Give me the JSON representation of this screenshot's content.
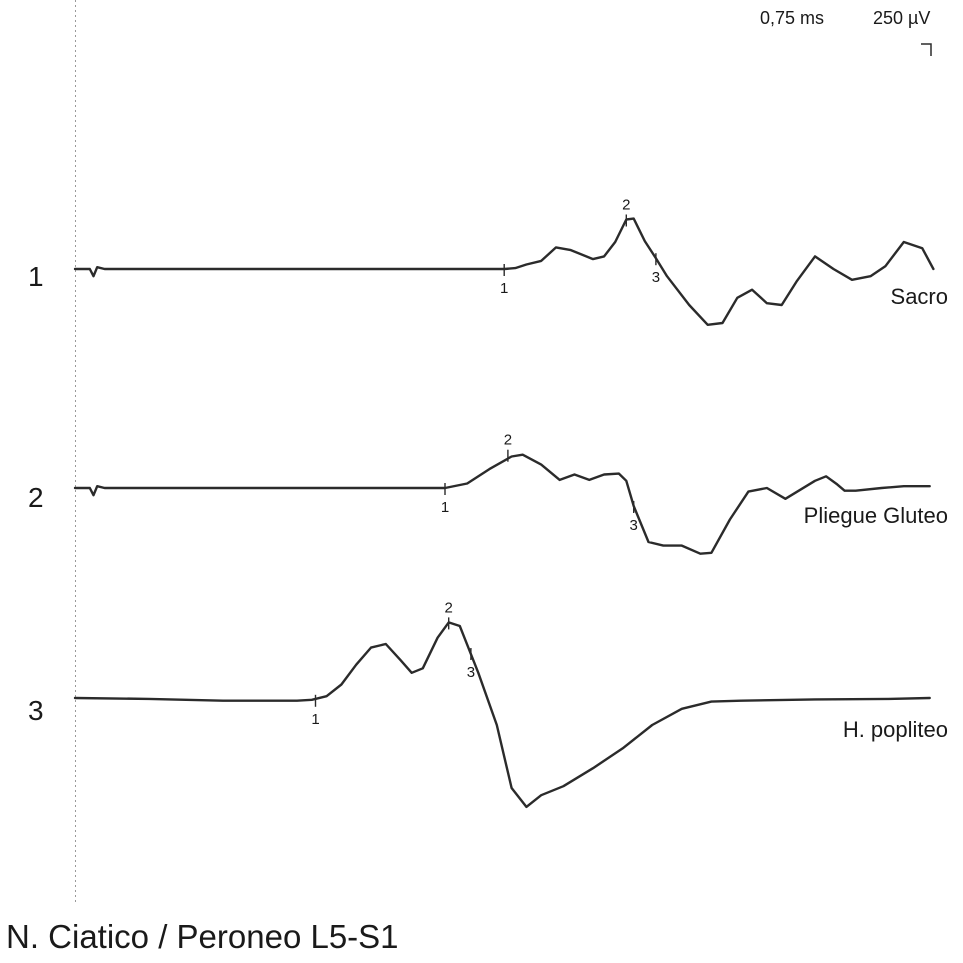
{
  "title": "N. Ciatico / Peroneo L5-S1",
  "scale": {
    "time": "0,75 ms",
    "amplitude": "250 µV"
  },
  "chart_data": {
    "type": "line",
    "x_units": "ms",
    "y_units": "µV",
    "x_per_division": 0.75,
    "y_per_division": 250,
    "series": [
      {
        "row": "1",
        "name": "Sacro",
        "points": [
          [
            0.0,
            0
          ],
          [
            0.2,
            0
          ],
          [
            0.25,
            -40
          ],
          [
            0.3,
            10
          ],
          [
            0.4,
            0
          ],
          [
            1.5,
            0
          ],
          [
            3.0,
            0
          ],
          [
            5.0,
            0
          ],
          [
            5.8,
            0
          ],
          [
            5.95,
            5
          ],
          [
            6.1,
            25
          ],
          [
            6.3,
            45
          ],
          [
            6.5,
            120
          ],
          [
            6.7,
            105
          ],
          [
            7.0,
            55
          ],
          [
            7.15,
            70
          ],
          [
            7.3,
            150
          ],
          [
            7.45,
            275
          ],
          [
            7.55,
            280
          ],
          [
            7.7,
            155
          ],
          [
            7.85,
            60
          ],
          [
            8.0,
            -40
          ],
          [
            8.3,
            -200
          ],
          [
            8.55,
            -310
          ],
          [
            8.75,
            -300
          ],
          [
            8.95,
            -160
          ],
          [
            9.15,
            -115
          ],
          [
            9.35,
            -190
          ],
          [
            9.55,
            -200
          ],
          [
            9.75,
            -70
          ],
          [
            10.0,
            70
          ],
          [
            10.25,
            0
          ],
          [
            10.5,
            -60
          ],
          [
            10.75,
            -40
          ],
          [
            10.95,
            15
          ],
          [
            11.2,
            150
          ],
          [
            11.45,
            115
          ],
          [
            11.6,
            0
          ]
        ],
        "markers": [
          {
            "label": "1",
            "t": 5.8,
            "amp": 0
          },
          {
            "label": "2",
            "t": 7.45,
            "amp": 275
          },
          {
            "label": "3",
            "t": 7.85,
            "amp": 60
          }
        ]
      },
      {
        "row": "2",
        "name": "Pliegue Gluteo",
        "points": [
          [
            0.0,
            0
          ],
          [
            0.2,
            0
          ],
          [
            0.25,
            -40
          ],
          [
            0.3,
            10
          ],
          [
            0.4,
            0
          ],
          [
            2.0,
            0
          ],
          [
            4.0,
            0
          ],
          [
            5.0,
            0
          ],
          [
            5.3,
            25
          ],
          [
            5.6,
            105
          ],
          [
            5.9,
            175
          ],
          [
            6.05,
            185
          ],
          [
            6.3,
            130
          ],
          [
            6.55,
            45
          ],
          [
            6.75,
            75
          ],
          [
            6.95,
            45
          ],
          [
            7.15,
            75
          ],
          [
            7.35,
            80
          ],
          [
            7.45,
            40
          ],
          [
            7.55,
            -100
          ],
          [
            7.75,
            -300
          ],
          [
            7.95,
            -320
          ],
          [
            8.2,
            -320
          ],
          [
            8.45,
            -365
          ],
          [
            8.6,
            -360
          ],
          [
            8.85,
            -175
          ],
          [
            9.1,
            -20
          ],
          [
            9.35,
            0
          ],
          [
            9.6,
            -60
          ],
          [
            10.0,
            40
          ],
          [
            10.15,
            65
          ],
          [
            10.3,
            20
          ],
          [
            10.4,
            -15
          ],
          [
            10.55,
            -15
          ],
          [
            10.9,
            0
          ],
          [
            11.2,
            10
          ],
          [
            11.55,
            10
          ]
        ],
        "markers": [
          {
            "label": "1",
            "t": 5.0,
            "amp": 0
          },
          {
            "label": "2",
            "t": 5.85,
            "amp": 185
          },
          {
            "label": "3",
            "t": 7.55,
            "amp": -100
          }
        ]
      },
      {
        "row": "3",
        "name": "H. popliteo",
        "points": [
          [
            0.0,
            0
          ],
          [
            1.0,
            -5
          ],
          [
            2.0,
            -15
          ],
          [
            3.0,
            -15
          ],
          [
            3.2,
            -10
          ],
          [
            3.4,
            10
          ],
          [
            3.6,
            75
          ],
          [
            3.8,
            185
          ],
          [
            4.0,
            280
          ],
          [
            4.2,
            300
          ],
          [
            4.4,
            210
          ],
          [
            4.55,
            140
          ],
          [
            4.7,
            165
          ],
          [
            4.9,
            335
          ],
          [
            5.05,
            420
          ],
          [
            5.2,
            400
          ],
          [
            5.45,
            140
          ],
          [
            5.7,
            -150
          ],
          [
            5.9,
            -500
          ],
          [
            6.1,
            -605
          ],
          [
            6.3,
            -540
          ],
          [
            6.6,
            -490
          ],
          [
            7.0,
            -390
          ],
          [
            7.4,
            -280
          ],
          [
            7.8,
            -150
          ],
          [
            8.2,
            -60
          ],
          [
            8.6,
            -20
          ],
          [
            9.0,
            -15
          ],
          [
            10.0,
            -8
          ],
          [
            11.0,
            -5
          ],
          [
            11.55,
            0
          ]
        ],
        "markers": [
          {
            "label": "1",
            "t": 3.25,
            "amp": -10
          },
          {
            "label": "2",
            "t": 5.05,
            "amp": 420
          },
          {
            "label": "3",
            "t": 5.35,
            "amp": 250
          }
        ]
      }
    ]
  }
}
